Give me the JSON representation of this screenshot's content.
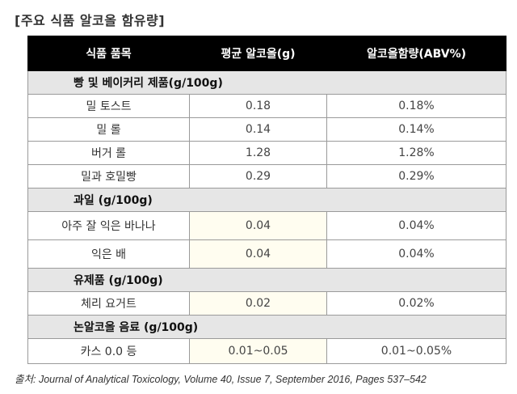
{
  "title": "[주요 식품 알코올 함유량]",
  "table": {
    "headers": [
      "식품 품목",
      "평균 알코올(g)",
      "알코올함량(ABV%)"
    ],
    "sections": [
      {
        "category": "빵 및 베이커리 제품(g/100g)",
        "rows": [
          {
            "item": "밀 토스트",
            "avg": "0.18",
            "abv": "0.18%"
          },
          {
            "item": "밀 롤",
            "avg": "0.14",
            "abv": "0.14%"
          },
          {
            "item": "버거 롤",
            "avg": "1.28",
            "abv": "1.28%"
          },
          {
            "item": "밀과 호밀빵",
            "avg": "0.29",
            "abv": "0.29%"
          }
        ]
      },
      {
        "category": "과일 (g/100g)",
        "rows": [
          {
            "item": "아주 잘 익은 바나나",
            "avg": "0.04",
            "abv": "0.04%"
          },
          {
            "item": "익은 배",
            "avg": "0.04",
            "abv": "0.04%"
          }
        ]
      },
      {
        "category": "유제품 (g/100g)",
        "rows": [
          {
            "item": "체리 요거트",
            "avg": "0.02",
            "abv": "0.02%"
          }
        ]
      },
      {
        "category": "논알코올 음료 (g/100g)",
        "rows": [
          {
            "item": "카스 0.0 등",
            "avg": "0.01~0.05",
            "abv": "0.01~0.05%"
          }
        ]
      }
    ]
  },
  "source": "출처: Journal of Analytical Toxicology, Volume 40, Issue 7, September 2016, Pages 537–542"
}
